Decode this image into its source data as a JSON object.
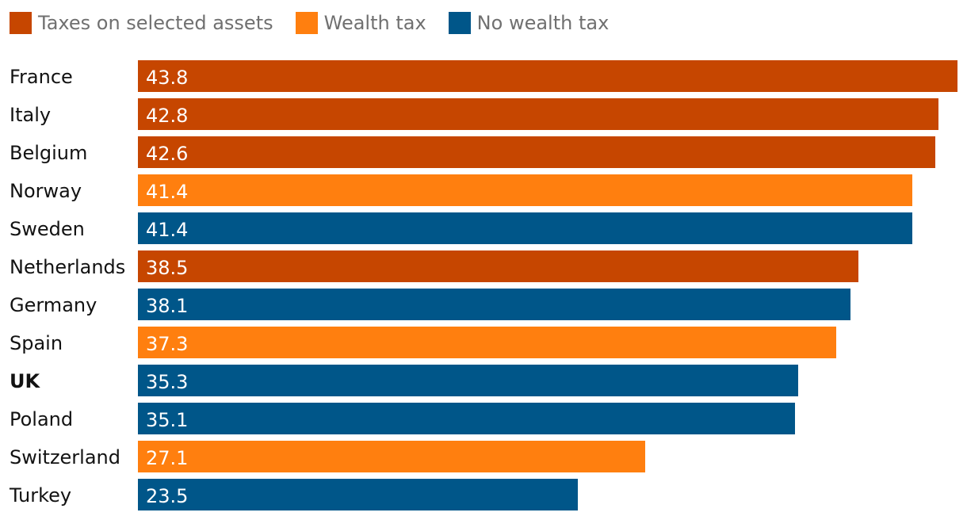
{
  "legend": {
    "items": [
      {
        "label": "Taxes on selected assets",
        "color": "#c64600"
      },
      {
        "label": "Wealth tax",
        "color": "#ff7f0f"
      },
      {
        "label": "No wealth tax",
        "color": "#005689"
      }
    ]
  },
  "chart_data": {
    "type": "bar",
    "orientation": "horizontal",
    "title": "",
    "xlabel": "",
    "ylabel": "",
    "xlim": [
      0,
      43.8
    ],
    "grid": false,
    "legend_position": "top-left",
    "categories": [
      "France",
      "Italy",
      "Belgium",
      "Norway",
      "Sweden",
      "Netherlands",
      "Germany",
      "Spain",
      "UK",
      "Poland",
      "Switzerland",
      "Turkey"
    ],
    "values": [
      43.8,
      42.8,
      42.6,
      41.4,
      41.4,
      38.5,
      38.1,
      37.3,
      35.3,
      35.1,
      27.1,
      23.5
    ],
    "value_labels": [
      "43.8",
      "42.8",
      "42.6",
      "41.4",
      "41.4",
      "38.5",
      "38.1",
      "37.3",
      "35.3",
      "35.1",
      "27.1",
      "23.5"
    ],
    "groups": [
      "Taxes on selected assets",
      "Taxes on selected assets",
      "Taxes on selected assets",
      "Wealth tax",
      "No wealth tax",
      "Taxes on selected assets",
      "No wealth tax",
      "Wealth tax",
      "No wealth tax",
      "No wealth tax",
      "Wealth tax",
      "No wealth tax"
    ],
    "highlighted": [
      "UK"
    ]
  }
}
